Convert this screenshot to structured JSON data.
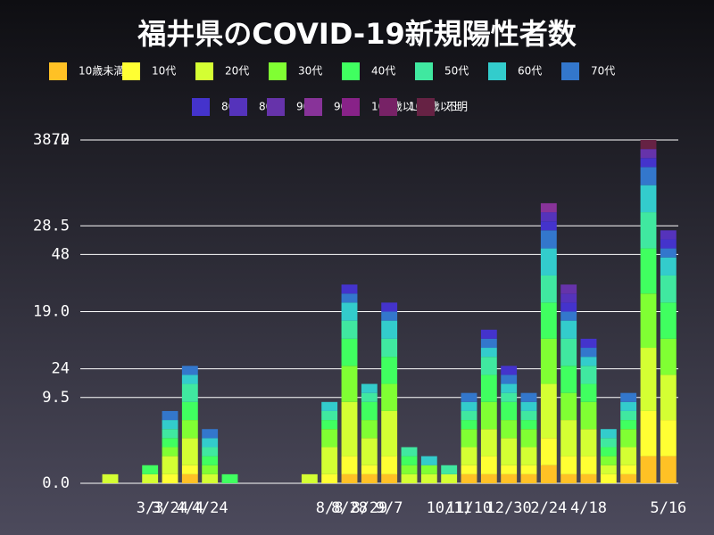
{
  "chart_data": {
    "type": "stacked_bar",
    "title": "福井県のCOVID-19新規陽性者数",
    "categories": [
      null,
      null,
      null,
      "3/3",
      "3/24",
      "4/4",
      "4/24",
      null,
      null,
      null,
      null,
      null,
      "8/8",
      "8/28",
      "8/29",
      "9/7",
      null,
      null,
      "10/11",
      "11/10",
      null,
      "12/30",
      null,
      "2/24",
      null,
      "4/18",
      null,
      null,
      null,
      "5/16"
    ],
    "series": [
      {
        "name": "10歳未満",
        "color": "#ffc125",
        "values": [
          0,
          0,
          0,
          0,
          0,
          1,
          0,
          0,
          0,
          0,
          0,
          0,
          0,
          1,
          1,
          1,
          0,
          0,
          0,
          1,
          1,
          1,
          1,
          2,
          1,
          1,
          0,
          1,
          3,
          3
        ]
      },
      {
        "name": "10代",
        "color": "#ffff33",
        "values": [
          0,
          0,
          0,
          0,
          1,
          1,
          0,
          0,
          0,
          0,
          0,
          0,
          1,
          2,
          1,
          2,
          0,
          0,
          0,
          1,
          2,
          1,
          1,
          3,
          2,
          2,
          1,
          1,
          5,
          4
        ]
      },
      {
        "name": "20代",
        "color": "#d4ff33",
        "values": [
          0,
          1,
          0,
          1,
          2,
          3,
          1,
          0,
          0,
          0,
          0,
          1,
          3,
          6,
          3,
          5,
          1,
          1,
          1,
          2,
          3,
          3,
          2,
          6,
          4,
          3,
          1,
          2,
          7,
          5
        ]
      },
      {
        "name": "30代",
        "color": "#80ff33",
        "values": [
          0,
          0,
          0,
          0,
          1,
          2,
          1,
          0,
          0,
          0,
          0,
          0,
          2,
          4,
          2,
          3,
          1,
          1,
          0,
          2,
          3,
          2,
          2,
          5,
          3,
          3,
          1,
          2,
          6,
          4
        ]
      },
      {
        "name": "40代",
        "color": "#40ff60",
        "values": [
          0,
          0,
          0,
          1,
          1,
          2,
          1,
          1,
          0,
          0,
          0,
          0,
          1,
          3,
          2,
          3,
          1,
          0,
          0,
          1,
          3,
          2,
          1,
          4,
          3,
          2,
          1,
          1,
          5,
          4
        ]
      },
      {
        "name": "50代",
        "color": "#40e8a0",
        "values": [
          0,
          0,
          0,
          0,
          1,
          2,
          1,
          0,
          0,
          0,
          0,
          0,
          1,
          2,
          1,
          2,
          1,
          0,
          1,
          1,
          2,
          1,
          1,
          3,
          3,
          2,
          1,
          1,
          4,
          3
        ]
      },
      {
        "name": "60代",
        "color": "#33cccc",
        "values": [
          0,
          0,
          0,
          0,
          1,
          1,
          1,
          0,
          0,
          0,
          0,
          0,
          1,
          2,
          1,
          2,
          0,
          1,
          0,
          1,
          1,
          1,
          1,
          3,
          2,
          1,
          1,
          1,
          3,
          2
        ]
      },
      {
        "name": "70代",
        "color": "#3377cc",
        "values": [
          0,
          0,
          0,
          0,
          1,
          1,
          1,
          0,
          0,
          0,
          0,
          0,
          0,
          1,
          0,
          1,
          0,
          0,
          0,
          1,
          1,
          1,
          1,
          2,
          1,
          1,
          0,
          1,
          2,
          1
        ]
      },
      {
        "name": "80代",
        "color": "#4433cc",
        "values": [
          0,
          0,
          0,
          0,
          0,
          0,
          0,
          0,
          0,
          0,
          0,
          0,
          0,
          1,
          0,
          1,
          0,
          0,
          0,
          0,
          1,
          1,
          0,
          1,
          1,
          1,
          0,
          0,
          1,
          1
        ]
      },
      {
        "name": "80代",
        "color": "#5533bb",
        "values": [
          0,
          0,
          0,
          0,
          0,
          0,
          0,
          0,
          0,
          0,
          0,
          0,
          0,
          0,
          0,
          0,
          0,
          0,
          0,
          0,
          0,
          0,
          0,
          1,
          1,
          0,
          0,
          0,
          0,
          1
        ]
      },
      {
        "name": "90代",
        "color": "#6633aa",
        "values": [
          0,
          0,
          0,
          0,
          0,
          0,
          0,
          0,
          0,
          0,
          0,
          0,
          0,
          0,
          0,
          0,
          0,
          0,
          0,
          0,
          0,
          0,
          0,
          0,
          1,
          0,
          0,
          0,
          1,
          0
        ]
      },
      {
        "name": "90代",
        "color": "#883399",
        "values": [
          0,
          0,
          0,
          0,
          0,
          0,
          0,
          0,
          0,
          0,
          0,
          0,
          0,
          0,
          0,
          0,
          0,
          0,
          0,
          0,
          0,
          0,
          0,
          1,
          0,
          0,
          0,
          0,
          0,
          0
        ]
      },
      {
        "name": "100歳以上",
        "color": "#882288",
        "values": [
          0,
          0,
          0,
          0,
          0,
          0,
          0,
          0,
          0,
          0,
          0,
          0,
          0,
          0,
          0,
          0,
          0,
          0,
          0,
          0,
          0,
          0,
          0,
          0,
          0,
          0,
          0,
          0,
          0,
          0
        ]
      },
      {
        "name": "100歳以上",
        "color": "#772266",
        "values": [
          0,
          0,
          0,
          0,
          0,
          0,
          0,
          0,
          0,
          0,
          0,
          0,
          0,
          0,
          0,
          0,
          0,
          0,
          0,
          0,
          0,
          0,
          0,
          0,
          0,
          0,
          0,
          0,
          0,
          0
        ]
      },
      {
        "name": "不明",
        "color": "#662244",
        "values": [
          0,
          0,
          0,
          0,
          0,
          0,
          0,
          0,
          0,
          0,
          0,
          0,
          0,
          0,
          0,
          0,
          0,
          0,
          0,
          0,
          0,
          0,
          0,
          0,
          0,
          0,
          0,
          0,
          1,
          0
        ]
      }
    ],
    "ylim": [
      0,
      38
    ],
    "yticks": [
      {
        "value": 0,
        "label": "0.0"
      },
      9.5,
      {
        "value": 19,
        "label": "19.0"
      },
      28.5,
      {
        "value": 38,
        "label": "38.0"
      }
    ],
    "y2lim": [
      0,
      72
    ],
    "y2ticks": [
      24,
      48,
      72
    ],
    "grid": true
  }
}
